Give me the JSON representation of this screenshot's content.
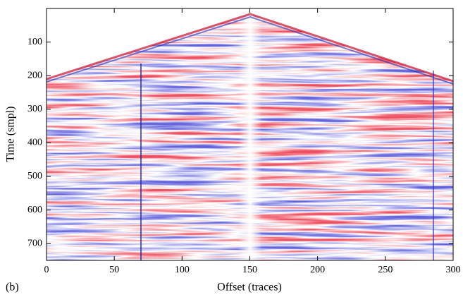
{
  "chart_data": {
    "type": "image",
    "label": "(b)",
    "xlabel": "Offset (traces)",
    "ylabel": "Time (smpl)",
    "xlim": [
      0,
      300
    ],
    "xticks": [
      0,
      50,
      100,
      150,
      200,
      250,
      300
    ],
    "ylim": [
      750,
      0
    ],
    "yticks": [
      100,
      200,
      300,
      400,
      500,
      600,
      700
    ]
  }
}
